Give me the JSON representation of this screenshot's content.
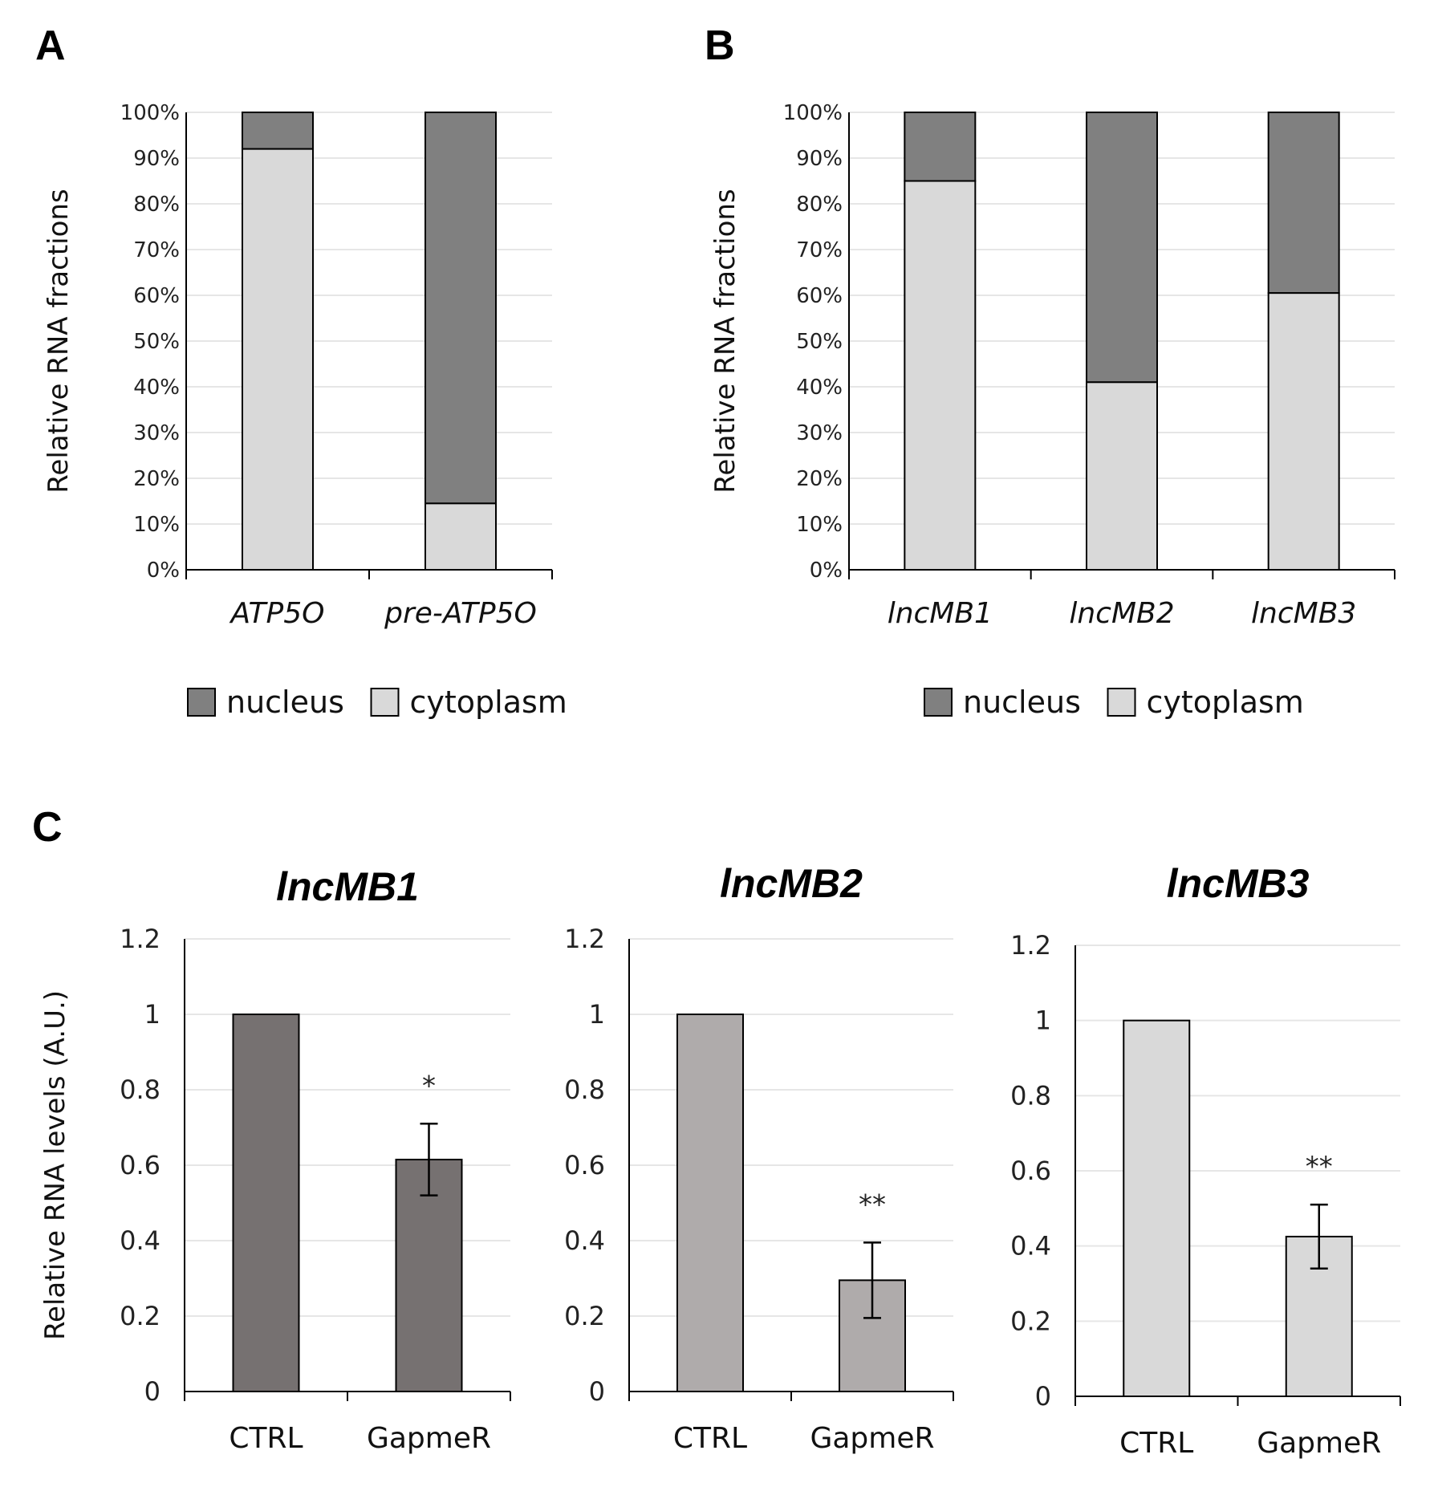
{
  "panels": {
    "a": "A",
    "b": "B",
    "c": "C"
  },
  "colors": {
    "nucleus": "#808080",
    "cytoplasm": "#d9d9d9",
    "axis": "#000000",
    "grid": "#e6e6e6"
  },
  "chart_data": [
    {
      "panel": "A",
      "type": "bar",
      "stacked": true,
      "categories": [
        "ATP5O",
        "pre-ATP5O"
      ],
      "series": [
        {
          "name": "cytoplasm",
          "values": [
            0.92,
            0.145
          ]
        },
        {
          "name": "nucleus",
          "values": [
            0.08,
            0.855
          ]
        }
      ],
      "ylabel": "Relative RNA fractions",
      "ylim": [
        0,
        1
      ],
      "yticks": [
        "0%",
        "10%",
        "20%",
        "30%",
        "40%",
        "50%",
        "60%",
        "70%",
        "80%",
        "90%",
        "100%"
      ],
      "legend": [
        "nucleus",
        "cytoplasm"
      ],
      "legend_position": "bottom"
    },
    {
      "panel": "B",
      "type": "bar",
      "stacked": true,
      "categories": [
        "lncMB1",
        "lncMB2",
        "lncMB3"
      ],
      "series": [
        {
          "name": "cytoplasm",
          "values": [
            0.85,
            0.41,
            0.605
          ]
        },
        {
          "name": "nucleus",
          "values": [
            0.15,
            0.59,
            0.395
          ]
        }
      ],
      "ylabel": "Relative RNA fractions",
      "ylim": [
        0,
        1
      ],
      "yticks": [
        "0%",
        "10%",
        "20%",
        "30%",
        "40%",
        "50%",
        "60%",
        "70%",
        "80%",
        "90%",
        "100%"
      ],
      "legend": [
        "nucleus",
        "cytoplasm"
      ],
      "legend_position": "bottom"
    },
    {
      "panel": "C",
      "type": "bar",
      "title": "lncMB1",
      "categories": [
        "CTRL",
        "GapmeR"
      ],
      "values": [
        1.0,
        0.615
      ],
      "errors": [
        null,
        0.095
      ],
      "significance": [
        null,
        "*"
      ],
      "ylabel": "Relative RNA levels (A.U.)",
      "ylim": [
        0,
        1.2
      ],
      "yticks": [
        "0",
        "0.2",
        "0.4",
        "0.6",
        "0.8",
        "1",
        "1.2"
      ],
      "color": "#767171"
    },
    {
      "panel": "C",
      "type": "bar",
      "title": "lncMB2",
      "categories": [
        "CTRL",
        "GapmeR"
      ],
      "values": [
        1.0,
        0.295
      ],
      "errors": [
        null,
        0.1
      ],
      "significance": [
        null,
        "**"
      ],
      "ylim": [
        0,
        1.2
      ],
      "yticks": [
        "0",
        "0.2",
        "0.4",
        "0.6",
        "0.8",
        "1",
        "1.2"
      ],
      "color": "#afabab"
    },
    {
      "panel": "C",
      "type": "bar",
      "title": "lncMB3",
      "categories": [
        "CTRL",
        "GapmeR"
      ],
      "values": [
        1.0,
        0.425
      ],
      "errors": [
        null,
        0.085
      ],
      "significance": [
        null,
        "**"
      ],
      "ylim": [
        0,
        1.2
      ],
      "yticks": [
        "0",
        "0.2",
        "0.4",
        "0.6",
        "0.8",
        "1",
        "1.2"
      ],
      "color": "#d9d9d9"
    }
  ]
}
